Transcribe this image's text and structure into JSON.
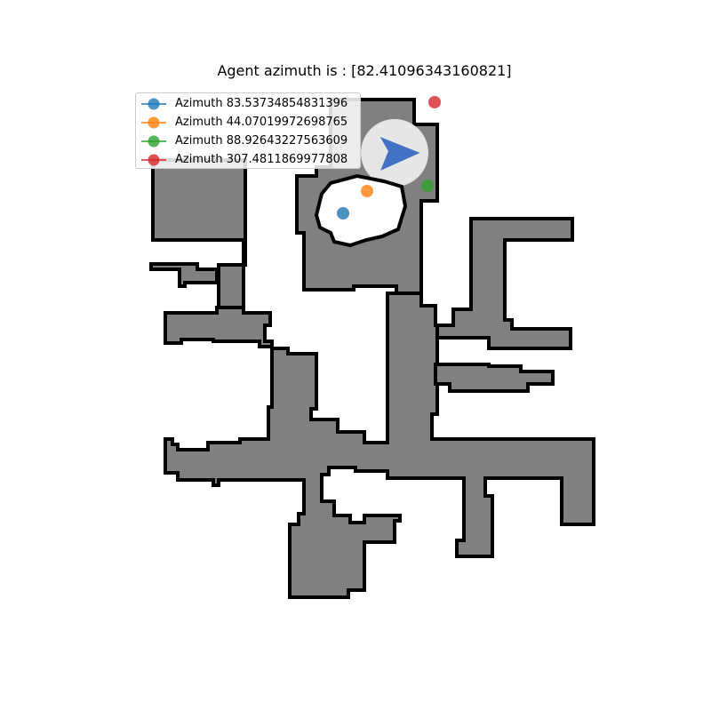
{
  "title": "Agent azimuth is : [82.41096343160821]",
  "legend": [
    {
      "label": "Azimuth 83.53734854831396",
      "color": "#1f77b4"
    },
    {
      "label": "Azimuth 44.07019972698765",
      "color": "#ff7f0e"
    },
    {
      "label": "Azimuth 88.92643227563609",
      "color": "#2ca02c"
    },
    {
      "label": "Azimuth 307.4811869977808",
      "color": "#d62728"
    }
  ],
  "agent": {
    "color": "#4472c4",
    "azimuth": 82.41096343160821
  },
  "colors": {
    "free_space": "#808080",
    "walls": "#000000",
    "explored": "#e6e6e6",
    "background": "#ffffff"
  }
}
